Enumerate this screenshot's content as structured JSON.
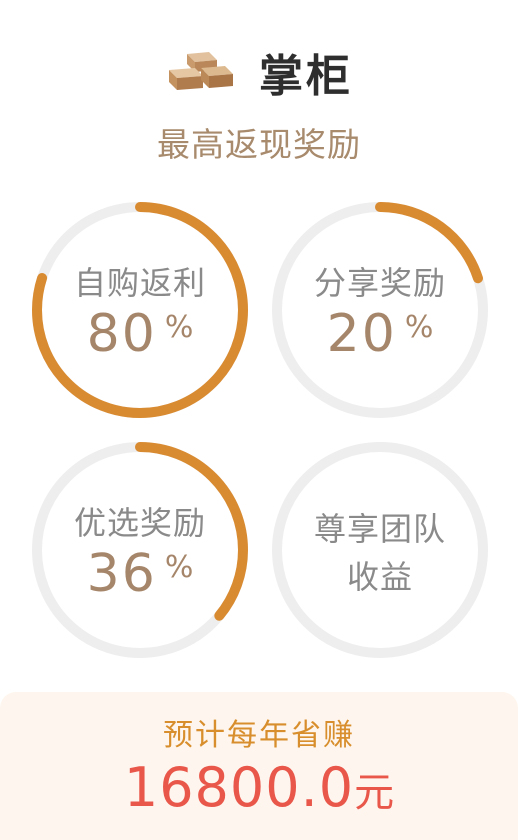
{
  "header": {
    "title": "掌柜",
    "icon": "gold-bars-icon"
  },
  "subtitle": "最高返现奖励",
  "colors": {
    "ring_track": "#eeeeee",
    "ring_fill": "#d98b32",
    "value": "#a6866a",
    "label": "#8a8a8a",
    "footer_bg": "#fef6ee",
    "footer_label": "#d88e2c",
    "footer_amount": "#e9574b"
  },
  "rings": [
    {
      "label": "自购返利",
      "value": "80",
      "unit": "%",
      "progress": 0.8
    },
    {
      "label": "分享奖励",
      "value": "20",
      "unit": "%",
      "progress": 0.2
    },
    {
      "label": "优选奖励",
      "value": "36",
      "unit": "%",
      "progress": 0.36
    },
    {
      "label_line1": "尊享团队",
      "label_line2": "收益",
      "progress": 0
    }
  ],
  "footer": {
    "label": "预计每年省赚",
    "amount": "16800.0",
    "unit": "元"
  }
}
